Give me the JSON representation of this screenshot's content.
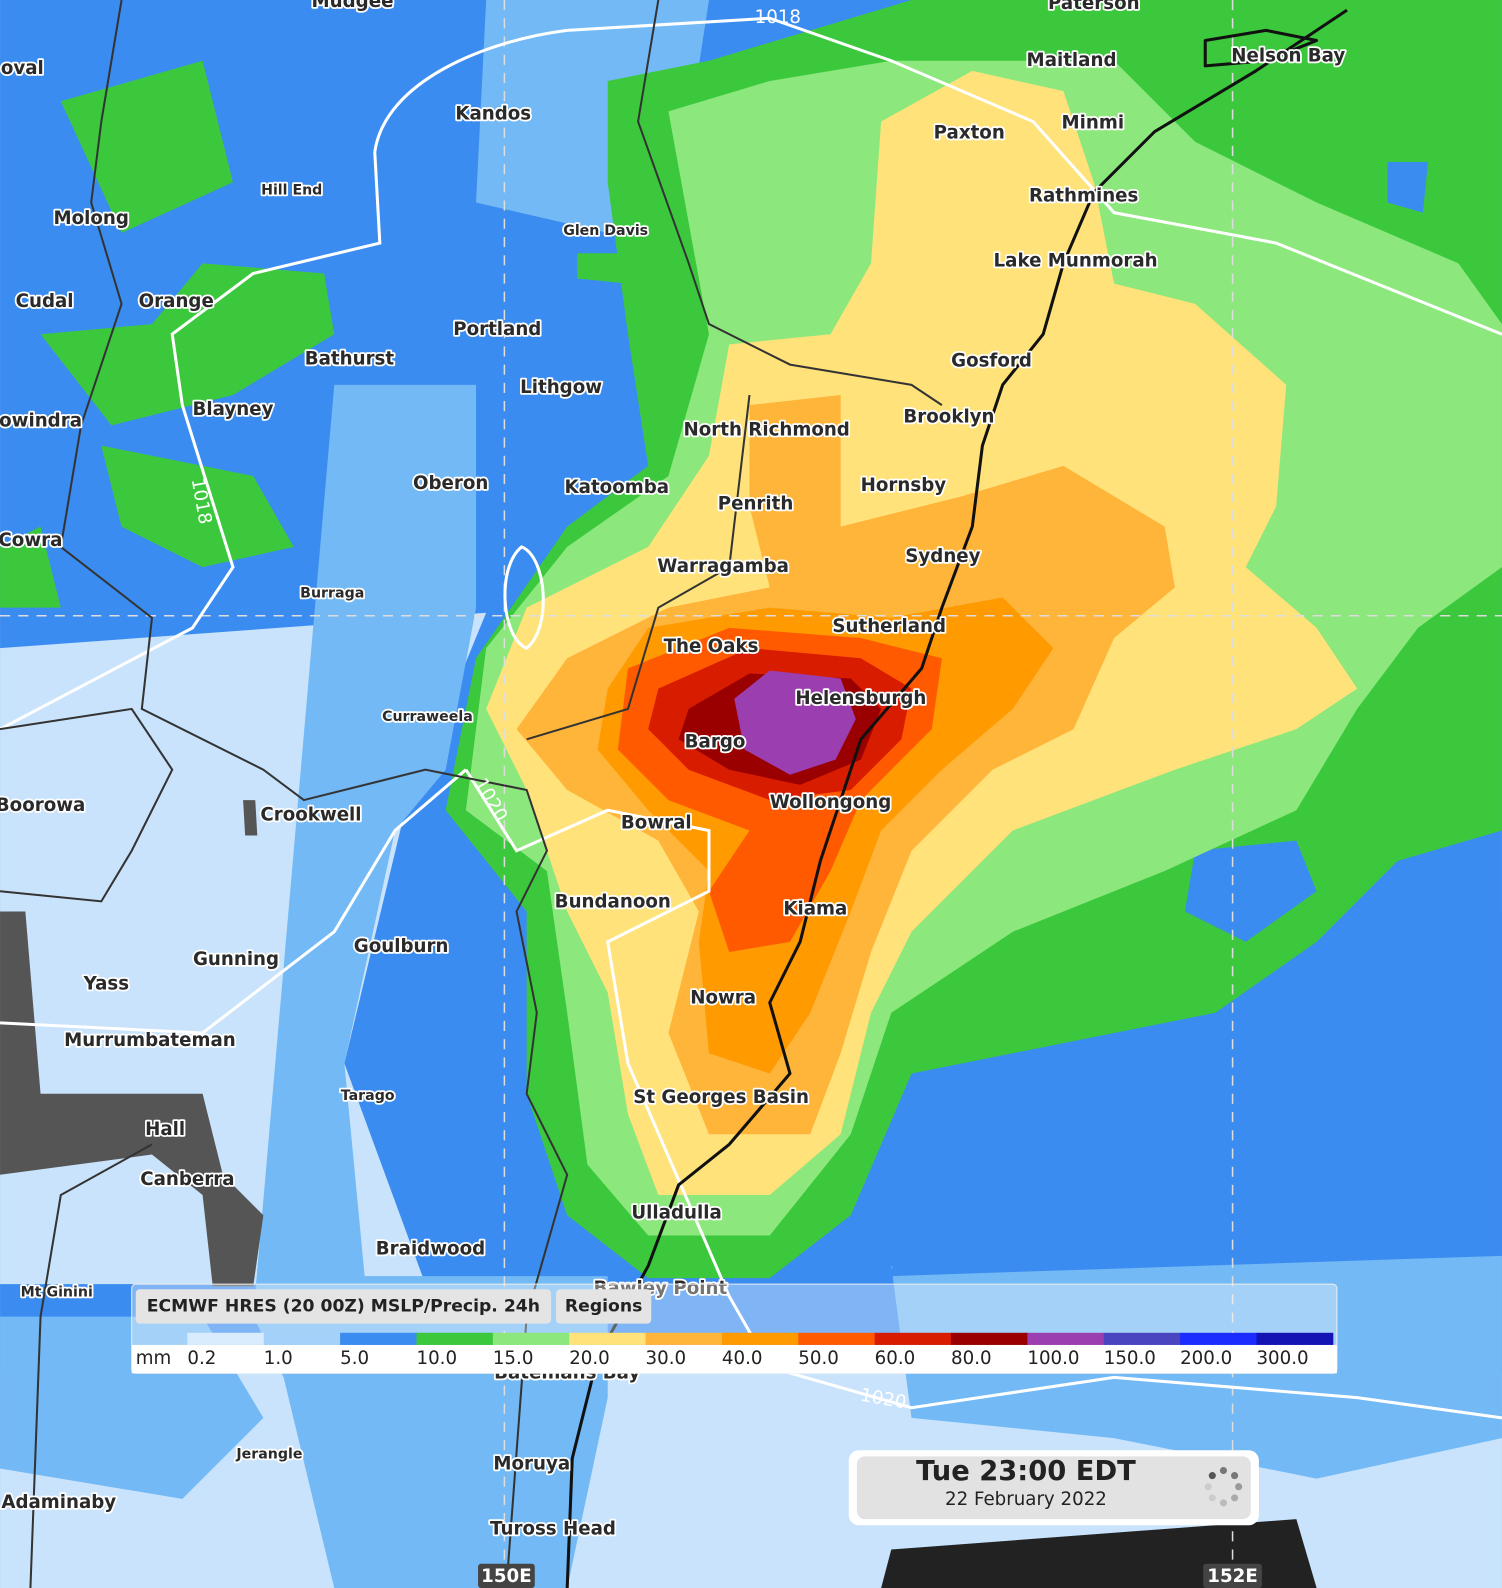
{
  "places": [
    "Mudgee",
    "Paterson",
    "oval",
    "Maitland",
    "Nelson Bay",
    "Kandos",
    "Minmi",
    "Paxton",
    "Hill End",
    "Rathmines",
    "Molong",
    "Glen Davis",
    "Lake Munmorah",
    "Cudal",
    "Orange",
    "Portland",
    "Bathurst",
    "Gosford",
    "Lithgow",
    "Blayney",
    "Brooklyn",
    "owindra",
    "North Richmond",
    "Oberon",
    "Katoomba",
    "Hornsby",
    "Penrith",
    "Cowra",
    "Sydney",
    "Warragamba",
    "Burraga",
    "Sutherland",
    "The Oaks",
    "Helensburgh",
    "Curraweela",
    "Bargo",
    "Boorowa",
    "Wollongong",
    "Crookwell",
    "Bowral",
    "Bundanoon",
    "Kiama",
    "Goulburn",
    "Gunning",
    "Yass",
    "Nowra",
    "Murrumbateman",
    "Tarago",
    "St Georges Basin",
    "Hall",
    "Canberra",
    "Ulladulla",
    "Braidwood",
    "Bawley Point",
    "Batemans Bay",
    "Mt Ginini",
    "Jerangle",
    "Moruya",
    "Adaminaby",
    "Tuross Head"
  ],
  "isobar_labels": [
    "1018",
    "1018",
    "1020",
    "1020"
  ],
  "grid_labels": [
    "150E",
    "152E"
  ],
  "legend": {
    "title": "ECMWF HRES (20 00Z) MSLP/Precip. 24h",
    "button": "Regions",
    "unit": "mm",
    "items": [
      {
        "label": "0.2",
        "color": "#d8ecfd"
      },
      {
        "label": "1.0",
        "color": "#a3d1f9"
      },
      {
        "label": "5.0",
        "color": "#3b8cf0"
      },
      {
        "label": "10.0",
        "color": "#3cc83c"
      },
      {
        "label": "15.0",
        "color": "#8ce87c"
      },
      {
        "label": "20.0",
        "color": "#ffe27a"
      },
      {
        "label": "30.0",
        "color": "#ffb43a"
      },
      {
        "label": "40.0",
        "color": "#ff9a00"
      },
      {
        "label": "50.0",
        "color": "#ff5a00"
      },
      {
        "label": "60.0",
        "color": "#d81c00"
      },
      {
        "label": "80.0",
        "color": "#9a0000"
      },
      {
        "label": "100.0",
        "color": "#9b3fb0"
      },
      {
        "label": "150.0",
        "color": "#4a44c0"
      },
      {
        "label": "200.0",
        "color": "#1a2cff"
      },
      {
        "label": "300.0",
        "color": "#1414b4"
      }
    ]
  },
  "time": {
    "time": "Tue 23:00 EDT",
    "date": "22 February 2022"
  }
}
